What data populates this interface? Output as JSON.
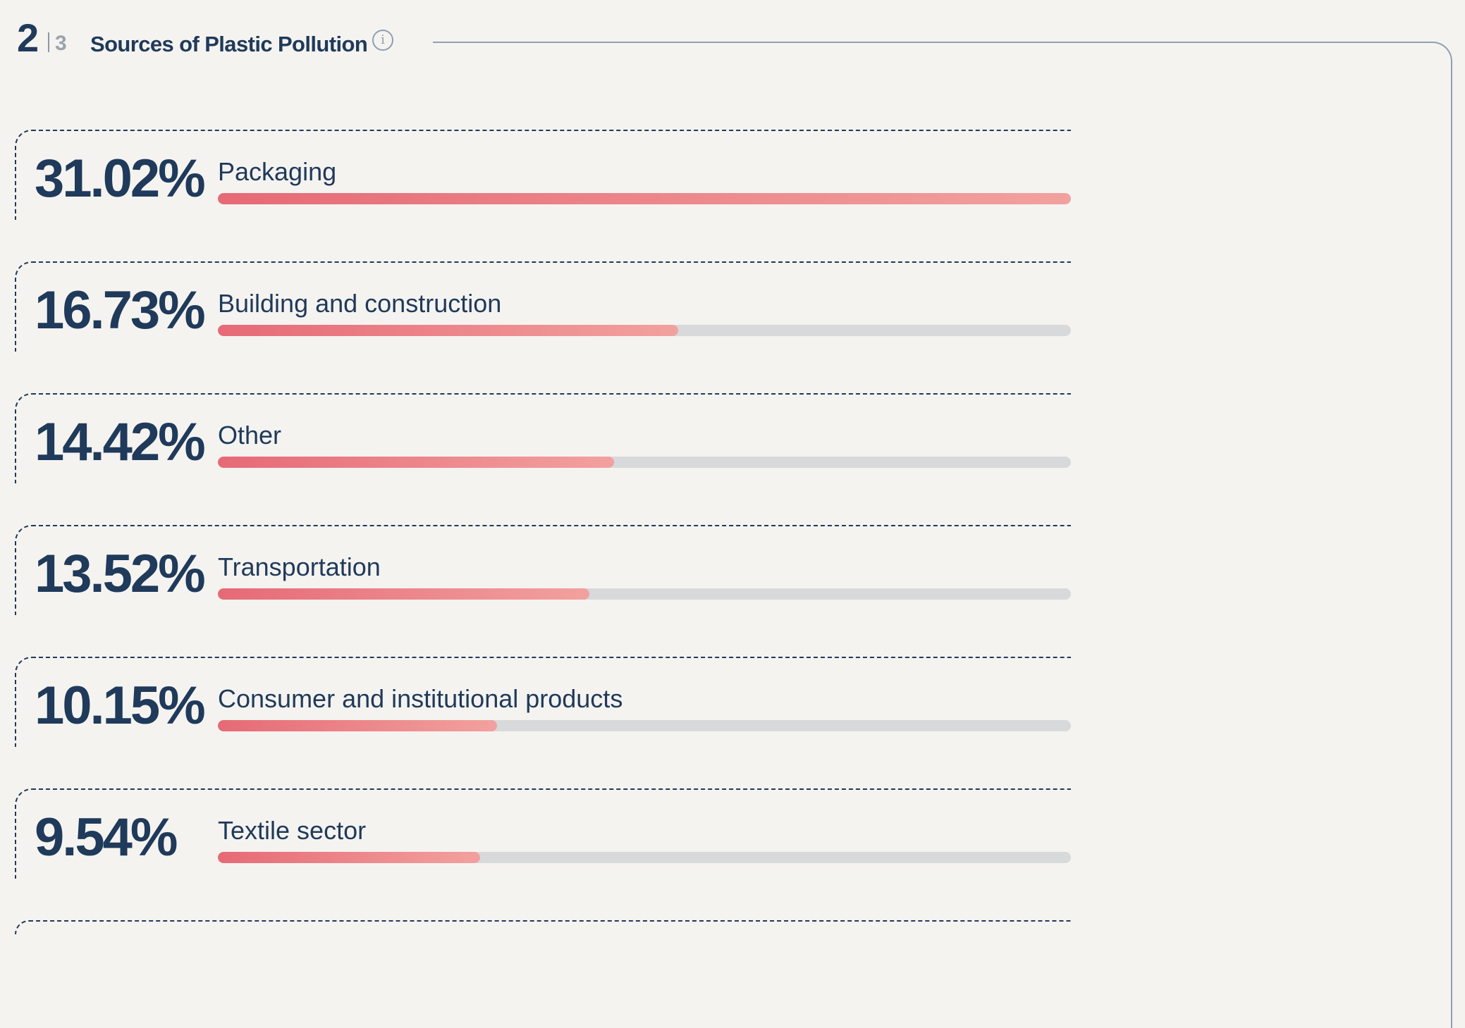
{
  "header": {
    "step_current": "2",
    "step_total": "3",
    "title": "Sources of Plastic Pollution",
    "info_icon": "info-icon"
  },
  "colors": {
    "text": "#1f3a5a",
    "bar_start": "#e66a76",
    "bar_end": "#f2a19e",
    "track": "#d8d9da",
    "background": "#f5f3f0"
  },
  "chart_data": {
    "type": "bar",
    "orientation": "horizontal",
    "categories": [
      "Packaging",
      "Building and construction",
      "Other",
      "Transportation",
      "Consumer and institutional products",
      "Textile sector"
    ],
    "values": [
      31.02,
      16.73,
      14.42,
      13.52,
      10.15,
      9.54
    ],
    "value_labels": [
      "31.02%",
      "16.73%",
      "14.42%",
      "13.52%",
      "10.15%",
      "9.54%"
    ],
    "xlim": [
      0,
      31.02
    ],
    "grid": false,
    "legend": "none"
  }
}
